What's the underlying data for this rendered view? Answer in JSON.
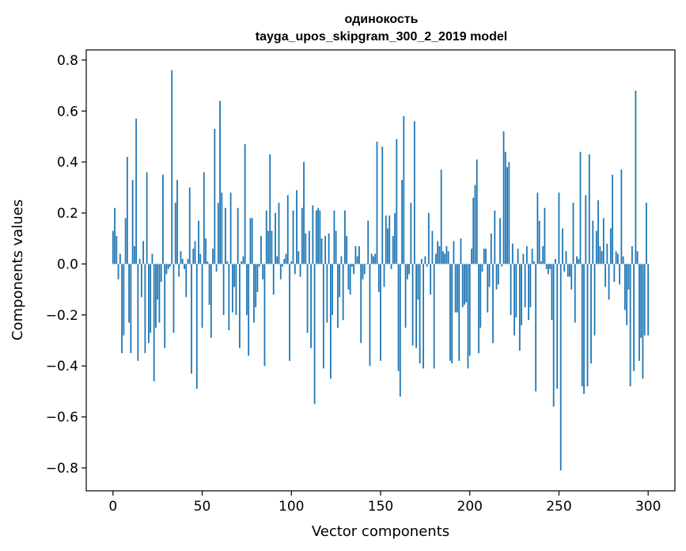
{
  "chart_data": {
    "type": "bar",
    "title": "одинокость",
    "subtitle": "tayga_upos_skipgram_300_2_2019 model",
    "xlabel": "Vector components",
    "ylabel": "Components values",
    "xlim": [
      -15,
      315
    ],
    "ylim": [
      -0.89,
      0.84
    ],
    "xticks": [
      0,
      50,
      100,
      150,
      200,
      250,
      300
    ],
    "xtick_labels": [
      "0",
      "50",
      "100",
      "150",
      "200",
      "250",
      "300"
    ],
    "yticks": [
      -0.8,
      -0.6,
      -0.4,
      -0.2,
      0.0,
      0.2,
      0.4,
      0.6,
      0.8
    ],
    "ytick_labels": [
      "−0.8",
      "−0.6",
      "−0.4",
      "−0.2",
      "0.0",
      "0.2",
      "0.4",
      "0.6",
      "0.8"
    ],
    "grid": false,
    "bar_color": "#1f77b4",
    "series": [
      {
        "values": [
          0.13,
          0.22,
          0.11,
          -0.06,
          0.04,
          -0.35,
          -0.28,
          0.18,
          0.42,
          -0.23,
          -0.35,
          0.33,
          0.07,
          0.57,
          -0.38,
          0.02,
          -0.13,
          0.09,
          -0.35,
          0.36,
          -0.31,
          -0.27,
          0.04,
          -0.46,
          -0.25,
          -0.14,
          -0.23,
          -0.07,
          0.35,
          -0.33,
          -0.04,
          -0.02,
          -0.01,
          0.76,
          -0.27,
          0.24,
          0.33,
          -0.05,
          0.05,
          0.02,
          -0.02,
          -0.13,
          0.02,
          0.3,
          -0.43,
          0.06,
          0.09,
          -0.49,
          0.17,
          0.04,
          -0.25,
          0.36,
          0.1,
          0.01,
          -0.16,
          -0.29,
          0.06,
          0.53,
          -0.03,
          0.24,
          0.64,
          0.28,
          -0.2,
          0.22,
          0.01,
          -0.26,
          0.28,
          -0.19,
          -0.09,
          -0.2,
          0.22,
          -0.33,
          0.01,
          0.03,
          0.47,
          -0.2,
          -0.36,
          0.18,
          0.18,
          -0.23,
          -0.17,
          -0.11,
          -0.01,
          0.11,
          -0.06,
          -0.4,
          0.21,
          0.13,
          0.43,
          0.13,
          -0.12,
          0.2,
          0.03,
          0.24,
          -0.06,
          -0.01,
          0.02,
          0.04,
          0.27,
          -0.38,
          0.01,
          0.21,
          -0.04,
          0.29,
          0.05,
          -0.05,
          0.22,
          0.4,
          0.12,
          -0.27,
          0.13,
          -0.33,
          0.23,
          -0.55,
          0.21,
          0.22,
          0.21,
          0.1,
          -0.41,
          0.11,
          -0.23,
          0.12,
          -0.45,
          -0.2,
          0.21,
          0.13,
          -0.25,
          -0.13,
          0.03,
          -0.22,
          0.21,
          0.11,
          -0.1,
          -0.12,
          -0.01,
          -0.04,
          0.07,
          0.03,
          0.07,
          -0.31,
          -0.06,
          -0.04,
          0.0,
          0.17,
          -0.4,
          0.04,
          0.03,
          0.04,
          0.48,
          -0.11,
          -0.38,
          0.46,
          -0.09,
          0.19,
          0.14,
          0.19,
          -0.02,
          0.11,
          0.2,
          0.49,
          -0.42,
          -0.52,
          0.33,
          0.58,
          -0.25,
          -0.06,
          -0.04,
          0.24,
          -0.32,
          0.56,
          -0.33,
          -0.14,
          -0.39,
          0.02,
          -0.41,
          0.03,
          -0.01,
          0.2,
          -0.12,
          0.13,
          -0.41,
          0.04,
          0.09,
          0.07,
          0.37,
          0.05,
          0.04,
          0.07,
          0.05,
          -0.38,
          -0.39,
          0.09,
          -0.19,
          -0.19,
          -0.38,
          0.1,
          -0.17,
          -0.16,
          -0.15,
          -0.41,
          -0.36,
          0.06,
          0.26,
          0.31,
          0.41,
          -0.35,
          -0.25,
          -0.03,
          0.06,
          0.06,
          -0.19,
          -0.09,
          0.12,
          -0.31,
          0.21,
          -0.1,
          -0.08,
          0.18,
          -0.01,
          0.52,
          0.44,
          0.38,
          0.4,
          -0.2,
          0.08,
          -0.28,
          -0.21,
          0.06,
          -0.34,
          -0.24,
          0.04,
          -0.17,
          0.07,
          -0.22,
          -0.17,
          0.06,
          0.01,
          -0.5,
          0.28,
          0.17,
          0.01,
          0.07,
          0.22,
          -0.02,
          -0.04,
          -0.02,
          -0.22,
          -0.56,
          0.02,
          -0.49,
          0.28,
          -0.81,
          0.14,
          -0.03,
          0.05,
          -0.05,
          -0.05,
          -0.1,
          0.24,
          -0.23,
          0.03,
          0.02,
          0.44,
          -0.48,
          -0.51,
          0.27,
          -0.48,
          0.43,
          -0.39,
          0.17,
          -0.28,
          0.13,
          0.25,
          0.07,
          0.05,
          0.18,
          -0.09,
          0.08,
          -0.14,
          0.14,
          0.35,
          -0.07,
          0.05,
          0.04,
          -0.08,
          0.37,
          0.03,
          -0.18,
          -0.24,
          -0.1,
          -0.48,
          0.07,
          -0.42,
          0.68,
          0.05,
          -0.38,
          -0.29,
          -0.45,
          -0.28,
          0.24,
          -0.28
        ]
      }
    ]
  }
}
